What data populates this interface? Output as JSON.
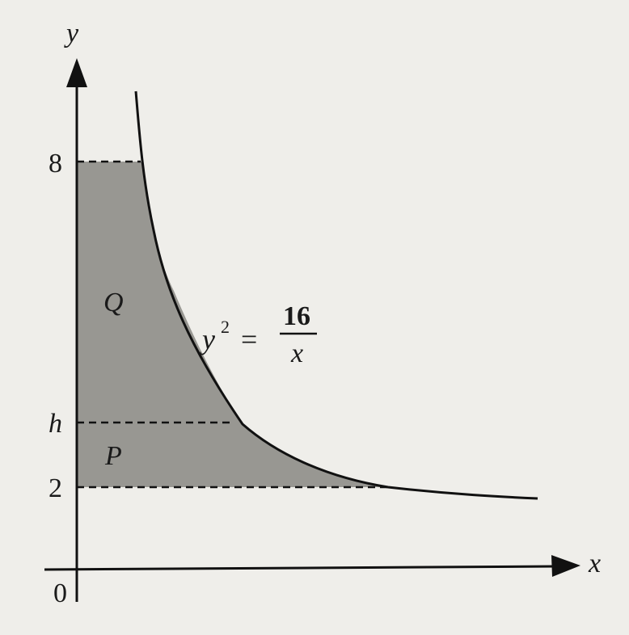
{
  "axes": {
    "y_label": "y",
    "x_label": "x",
    "origin": "0"
  },
  "y_marks": [
    "8",
    "h",
    "2"
  ],
  "regions": [
    "Q",
    "P"
  ],
  "equation": {
    "lhs": "y",
    "exponent": "2",
    "equals": "=",
    "numerator": "16",
    "denominator": "x"
  }
}
